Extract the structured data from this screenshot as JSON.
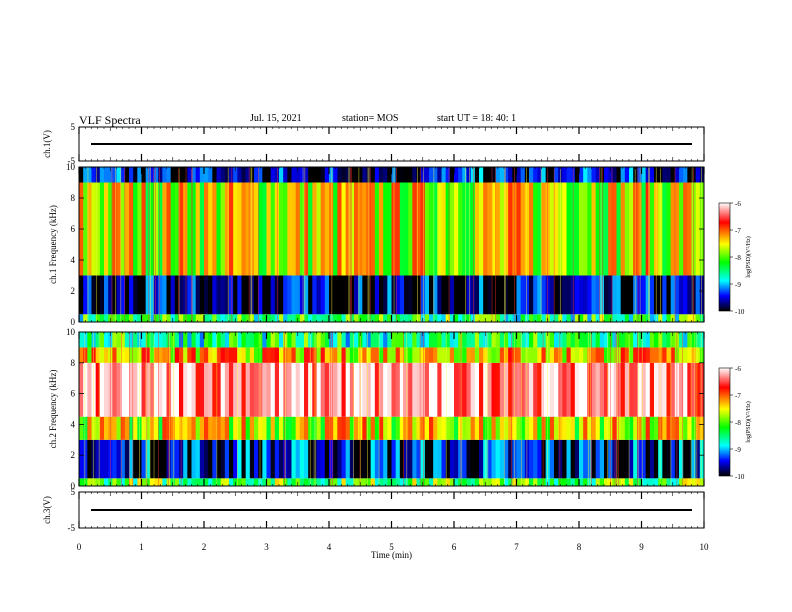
{
  "header": {
    "title": "VLF Spectra",
    "date": "Jul. 15, 2021",
    "station": "station= MOS",
    "start": "start  UT =   18: 40: 1"
  },
  "chart_data": [
    {
      "type": "line",
      "panel": "ch1-waveform",
      "ylabel": "ch.1(V)",
      "ylim": [
        -5,
        5
      ],
      "yticks": [
        "5",
        "-5"
      ],
      "series": [
        {
          "values": [
            0
          ]
        }
      ]
    },
    {
      "type": "heatmap",
      "panel": "ch1-spectrogram",
      "ylabel": "ch.1 Frequency (kHz)",
      "ylim": [
        0,
        10
      ],
      "yticks": [
        "0",
        "2",
        "4",
        "6",
        "8",
        "10"
      ],
      "colorbar": {
        "label": "log(PSD)(V²/Hz)",
        "range": [
          -10,
          -6
        ],
        "ticks": [
          "-6",
          "-7",
          "-8",
          "-9",
          "-10"
        ]
      },
      "bands": [
        {
          "freq_khz": [
            0,
            0.5
          ],
          "log_psd": -8.5
        },
        {
          "freq_khz": [
            0.5,
            3.0
          ],
          "log_psd": -9.8
        },
        {
          "freq_khz": [
            3.0,
            9.0
          ],
          "log_psd": -7.8
        },
        {
          "freq_khz": [
            9.0,
            10.0
          ],
          "log_psd": -9.7
        }
      ]
    },
    {
      "type": "heatmap",
      "panel": "ch2-spectrogram",
      "ylabel": "ch.2 Frequency (kHz)",
      "ylim": [
        0,
        10
      ],
      "yticks": [
        "0",
        "2",
        "4",
        "6",
        "8",
        "10"
      ],
      "colorbar": {
        "label": "log(PSD)(V²/Hz)",
        "range": [
          -10,
          -6
        ],
        "ticks": [
          "-6",
          "-7",
          "-8",
          "-9",
          "-10"
        ]
      },
      "bands": [
        {
          "freq_khz": [
            0,
            0.5
          ],
          "log_psd": -8.3
        },
        {
          "freq_khz": [
            0.5,
            3.0
          ],
          "log_psd": -9.6
        },
        {
          "freq_khz": [
            3.0,
            4.5
          ],
          "log_psd": -7.8
        },
        {
          "freq_khz": [
            4.5,
            8.0
          ],
          "log_psd": -6.4
        },
        {
          "freq_khz": [
            8.0,
            9.0
          ],
          "log_psd": -7.6
        },
        {
          "freq_khz": [
            9.0,
            10.0
          ],
          "log_psd": -8.6
        }
      ]
    },
    {
      "type": "line",
      "panel": "ch3-waveform",
      "ylabel": "ch.3(V)",
      "ylim": [
        -5,
        5
      ],
      "yticks": [
        "5",
        "-5"
      ],
      "series": [
        {
          "values": [
            0
          ]
        }
      ]
    }
  ],
  "xaxis": {
    "label": "Time  (min)",
    "range": [
      0,
      10
    ],
    "ticks": [
      "0",
      "1",
      "2",
      "3",
      "4",
      "5",
      "6",
      "7",
      "8",
      "9",
      "10"
    ]
  },
  "colors": {
    "axes": "#000000",
    "colormap": [
      "#ffffff",
      "#ff0000",
      "#ffff00",
      "#00ff00",
      "#00ffff",
      "#0000ff",
      "#000000"
    ]
  }
}
